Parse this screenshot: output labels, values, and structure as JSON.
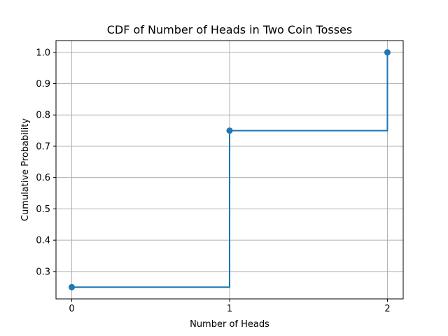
{
  "chart_data": {
    "type": "line",
    "drawstyle": "steps-post",
    "title": "CDF of Number of Heads in Two Coin Tosses",
    "xlabel": "Number of Heads",
    "ylabel": "Cumulative Probability",
    "x": [
      0,
      1,
      2
    ],
    "series": [
      {
        "values": [
          0.25,
          0.75,
          1.0
        ],
        "color": "#1f77b4",
        "marker": "circle"
      }
    ],
    "xlim": [
      -0.1,
      2.1
    ],
    "ylim": [
      0.2125,
      1.0375
    ],
    "xticks": [
      0,
      1,
      2
    ],
    "xtick_labels": [
      "0",
      "1",
      "2"
    ],
    "yticks": [
      0.3,
      0.4,
      0.5,
      0.6,
      0.7,
      0.8,
      0.9,
      1.0
    ],
    "ytick_labels": [
      "0.3",
      "0.4",
      "0.5",
      "0.6",
      "0.7",
      "0.8",
      "0.9",
      "1.0"
    ],
    "grid": true
  }
}
